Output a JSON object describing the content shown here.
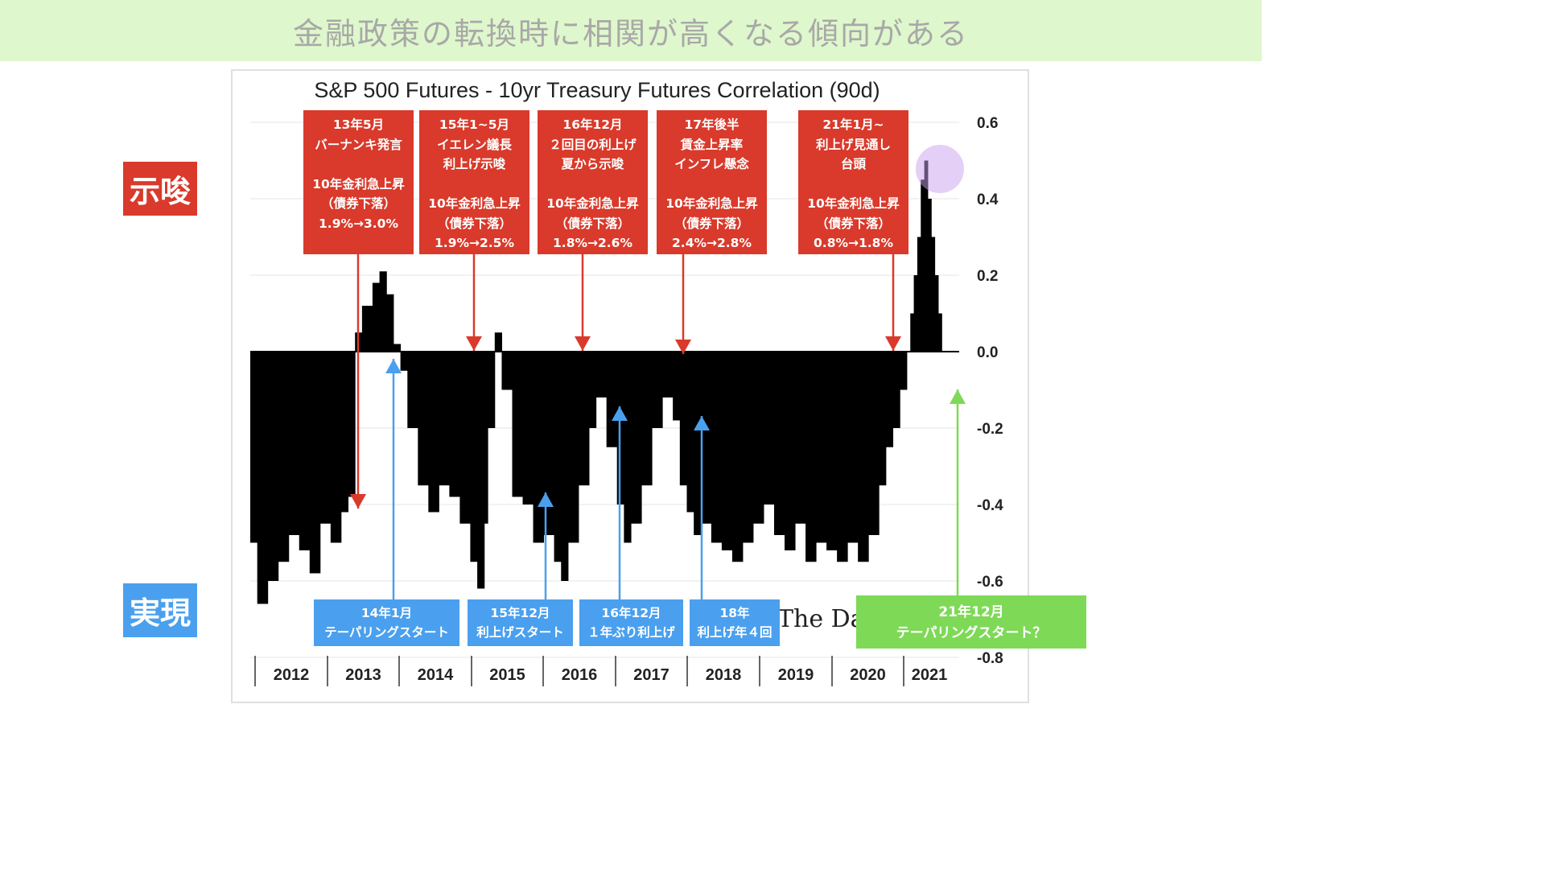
{
  "banner": {
    "text": "金融政策の転換時に相関が高くなる傾向がある"
  },
  "side_labels": {
    "top": "示唆",
    "bottom": "実現"
  },
  "watermark": "The Da",
  "chart_data": {
    "type": "area",
    "title": "S&P 500 Futures - 10yr Treasury Futures Correlation (90d)",
    "xlabel": "",
    "ylabel": "",
    "ylim": [
      -0.8,
      0.6
    ],
    "xlim": [
      2011.6,
      2021.75
    ],
    "grid": true,
    "y_ticks": [
      "0.6",
      "0.4",
      "0.2",
      "0.0",
      "-0.2",
      "-0.4",
      "-0.6",
      "-0.8"
    ],
    "x_ticks": [
      "2012",
      "2013",
      "2014",
      "2015",
      "2016",
      "2017",
      "2018",
      "2019",
      "2020",
      "2021"
    ],
    "series": [
      {
        "x": [
          2011.6,
          2011.7,
          2011.85,
          2012.0,
          2012.15,
          2012.3,
          2012.45,
          2012.6,
          2012.75,
          2012.9,
          2013.0,
          2013.1,
          2013.2,
          2013.35,
          2013.45,
          2013.55,
          2013.65,
          2013.75,
          2013.85,
          2014.0,
          2014.15,
          2014.3,
          2014.45,
          2014.6,
          2014.75,
          2014.85,
          2014.95,
          2015.0,
          2015.1,
          2015.2,
          2015.35,
          2015.5,
          2015.65,
          2015.8,
          2015.95,
          2016.05,
          2016.15,
          2016.3,
          2016.45,
          2016.55,
          2016.7,
          2016.85,
          2016.95,
          2017.05,
          2017.2,
          2017.35,
          2017.5,
          2017.65,
          2017.75,
          2017.85,
          2017.95,
          2018.05,
          2018.2,
          2018.35,
          2018.5,
          2018.65,
          2018.8,
          2018.95,
          2019.1,
          2019.25,
          2019.4,
          2019.55,
          2019.7,
          2019.85,
          2020.0,
          2020.15,
          2020.3,
          2020.45,
          2020.6,
          2020.7,
          2020.8,
          2020.9,
          2021.0,
          2021.05,
          2021.1,
          2021.15,
          2021.2,
          2021.25,
          2021.3,
          2021.35,
          2021.4,
          2021.45
        ],
        "values": [
          -0.5,
          -0.66,
          -0.6,
          -0.55,
          -0.48,
          -0.52,
          -0.58,
          -0.45,
          -0.5,
          -0.42,
          -0.38,
          0.05,
          0.12,
          0.18,
          0.21,
          0.15,
          0.02,
          -0.05,
          -0.2,
          -0.35,
          -0.42,
          -0.35,
          -0.38,
          -0.45,
          -0.55,
          -0.62,
          -0.45,
          -0.2,
          0.05,
          -0.1,
          -0.38,
          -0.4,
          -0.5,
          -0.48,
          -0.55,
          -0.6,
          -0.5,
          -0.35,
          -0.2,
          -0.12,
          -0.25,
          -0.4,
          -0.5,
          -0.45,
          -0.35,
          -0.2,
          -0.12,
          -0.18,
          -0.35,
          -0.42,
          -0.48,
          -0.45,
          -0.5,
          -0.52,
          -0.55,
          -0.5,
          -0.45,
          -0.4,
          -0.48,
          -0.52,
          -0.45,
          -0.55,
          -0.5,
          -0.52,
          -0.55,
          -0.5,
          -0.55,
          -0.48,
          -0.35,
          -0.25,
          -0.2,
          -0.1,
          0.0,
          0.1,
          0.2,
          0.3,
          0.45,
          0.5,
          0.4,
          0.3,
          0.2,
          0.1
        ]
      }
    ],
    "annotations_top": [
      {
        "text": "13年5月\nバーナンキ発言\n\n10年金利急上昇\n（債券下落）\n1.9%→3.0%",
        "x": 2013.4
      },
      {
        "text": "15年1~5月\nイエレン議長\n利上げ示唆\n\n10年金利急上昇\n（債券下落）\n1.9%→2.5%",
        "x": 2015.0
      },
      {
        "text": "16年12月\n２回目の利上げ\n夏から示唆\n\n10年金利急上昇\n（債券下落）\n1.8%→2.6%",
        "x": 2016.6
      },
      {
        "text": "17年後半\n賃金上昇率\nインフレ懸念\n\n10年金利急上昇\n（債券下落）\n2.4%→2.8%",
        "x": 2018.25
      },
      {
        "text": "21年1月~\n利上げ見通し\n台頭\n\n10年金利急上昇\n（債券下落）\n0.8%→1.8%",
        "x": 2020.2
      }
    ],
    "annotations_bottom": [
      {
        "text": "14年1月\nテーパリングスタート",
        "x": 2014.0
      },
      {
        "text": "15年12月\n利上げスタート",
        "x": 2016.0
      },
      {
        "text": "16年12月\n１年ぶり利上げ",
        "x": 2017.0
      },
      {
        "text": "18年\n利上げ年４回",
        "x": 2018.2
      },
      {
        "text": "21年12月\nテーパリングスタート？",
        "x": 2021.9
      }
    ]
  }
}
